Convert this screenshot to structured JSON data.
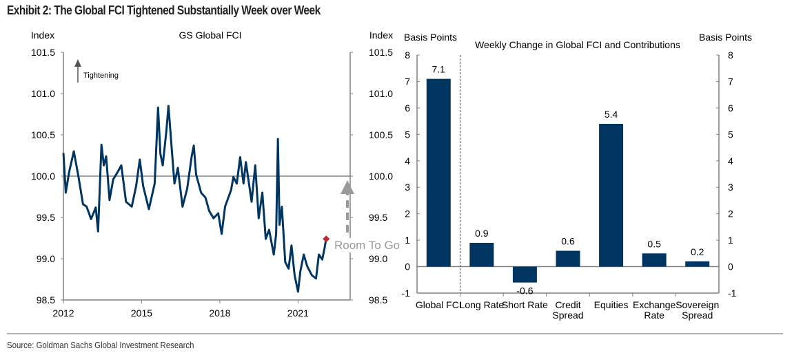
{
  "title": "Exhibit 2: The Global FCI Tightened Substantially Week over Week",
  "source": "Source: Goldman Sachs Global Investment Research",
  "colors": {
    "series": "#003461",
    "marker": "#c0282d",
    "annotation": "#999999",
    "axis": "#808080"
  },
  "chart_data": [
    {
      "type": "line",
      "title": "GS Global FCI",
      "ylabel_left": "Index",
      "ylabel_right": "Index",
      "annotation_tightening": "Tightening",
      "annotation_room": "Room To Go",
      "reference_line": 100.0,
      "xlim": [
        2012,
        2023
      ],
      "ylim": [
        98.5,
        101.5
      ],
      "xticks": [
        "2012",
        "2015",
        "2018",
        "2021"
      ],
      "xtick_values": [
        2012,
        2015,
        2018,
        2021
      ],
      "yticks": [
        "101.5",
        "101.0",
        "100.5",
        "100.0",
        "99.5",
        "99.0",
        "98.5"
      ],
      "ytick_values": [
        101.5,
        101.0,
        100.5,
        100.0,
        99.5,
        99.0,
        98.5
      ],
      "x": [
        2012.0,
        2012.09,
        2012.22,
        2012.4,
        2012.58,
        2012.75,
        2012.89,
        2013.06,
        2013.24,
        2013.33,
        2013.46,
        2013.55,
        2013.64,
        2013.77,
        2013.91,
        2014.08,
        2014.22,
        2014.4,
        2014.62,
        2014.79,
        2014.93,
        2015.06,
        2015.28,
        2015.5,
        2015.63,
        2015.72,
        2015.81,
        2015.95,
        2016.03,
        2016.17,
        2016.26,
        2016.39,
        2016.57,
        2016.75,
        2016.92,
        2017.0,
        2017.09,
        2017.28,
        2017.45,
        2017.59,
        2017.76,
        2017.94,
        2018.07,
        2018.2,
        2018.43,
        2018.52,
        2018.65,
        2018.78,
        2018.91,
        2019.0,
        2019.22,
        2019.36,
        2019.49,
        2019.63,
        2019.76,
        2019.89,
        2020.07,
        2020.16,
        2020.23,
        2020.29,
        2020.38,
        2020.51,
        2020.64,
        2020.75,
        2020.87,
        2021.0,
        2021.09,
        2021.22,
        2021.35,
        2021.53,
        2021.69,
        2021.8,
        2021.93,
        2022.02,
        2022.08
      ],
      "y": [
        100.28,
        99.8,
        100.05,
        100.3,
        99.99,
        99.66,
        99.63,
        99.48,
        99.62,
        99.33,
        100.38,
        100.13,
        100.24,
        99.71,
        99.96,
        100.05,
        100.13,
        99.69,
        99.63,
        99.88,
        100.2,
        99.88,
        99.6,
        99.91,
        100.83,
        100.27,
        100.13,
        100.55,
        100.85,
        100.27,
        99.91,
        100.1,
        99.63,
        99.85,
        100.24,
        100.37,
        100.02,
        99.8,
        99.74,
        99.58,
        99.49,
        99.55,
        99.3,
        99.63,
        99.83,
        99.99,
        99.91,
        100.23,
        99.91,
        100.17,
        99.69,
        100.13,
        99.49,
        99.8,
        99.24,
        99.35,
        99.05,
        99.3,
        100.45,
        99.41,
        99.63,
        98.96,
        98.88,
        99.16,
        98.8,
        98.6,
        98.85,
        99.05,
        98.91,
        98.8,
        98.76,
        99.05,
        98.99,
        99.13,
        99.24
      ],
      "last_point": {
        "x": 2022.08,
        "y": 99.24
      }
    },
    {
      "type": "bar",
      "title": "Weekly Change in Global FCI and Contributions",
      "ylabel_left": "Basis Points",
      "ylabel_right": "Basis Points",
      "ylim": [
        -1,
        8
      ],
      "yticks": [
        "8",
        "7",
        "6",
        "5",
        "4",
        "3",
        "2",
        "1",
        "0",
        "-1"
      ],
      "ytick_values": [
        8,
        7,
        6,
        5,
        4,
        3,
        2,
        1,
        0,
        -1
      ],
      "categories": [
        [
          "Global FCI"
        ],
        [
          "Long Rate"
        ],
        [
          "Short Rate"
        ],
        [
          "Credit",
          "Spread"
        ],
        [
          "Equities"
        ],
        [
          "Exchange",
          "Rate"
        ],
        [
          "Sovereign",
          "Spread"
        ]
      ],
      "values": [
        7.1,
        0.9,
        -0.6,
        0.6,
        5.4,
        0.5,
        0.2
      ],
      "value_labels": [
        "7.1",
        "0.9",
        "-0.6",
        "0.6",
        "5.4",
        "0.5",
        "0.2"
      ]
    }
  ]
}
